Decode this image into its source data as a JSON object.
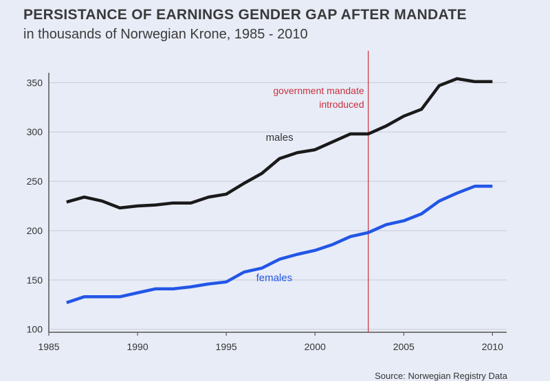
{
  "title": "PERSISTANCE OF EARNINGS GENDER GAP AFTER MANDATE",
  "subtitle": "in thousands of Norwegian Krone, 1985 - 2010",
  "source": "Source: Norwegian Registry Data",
  "colors": {
    "background": "#e8ecf7",
    "grid": "#c6cad3",
    "males": "#1a1a1a",
    "females": "#2256e6",
    "mandate": "#c8303c"
  },
  "chart_data": {
    "type": "line",
    "title": "PERSISTANCE OF EARNINGS GENDER GAP AFTER MANDATE",
    "subtitle": "in thousands of Norwegian Krone, 1985 - 2010",
    "xlim": [
      1985,
      2010.8
    ],
    "ylim": [
      97,
      360
    ],
    "xticks": [
      1985,
      1990,
      1995,
      2000,
      2005,
      2010
    ],
    "yticks": [
      100,
      150,
      200,
      250,
      300,
      350
    ],
    "grid": "horizontal",
    "x": [
      1986,
      1987,
      1988,
      1989,
      1990,
      1991,
      1992,
      1993,
      1994,
      1995,
      1996,
      1997,
      1998,
      1999,
      2000,
      2001,
      2002,
      2003,
      2004,
      2005,
      2006,
      2007,
      2008,
      2009,
      2010
    ],
    "series": [
      {
        "name": "males",
        "color": "#1a1a1a",
        "values": [
          229,
          234,
          230,
          223,
          225,
          226,
          228,
          228,
          234,
          237,
          248,
          258,
          273,
          279,
          282,
          290,
          298,
          298,
          306,
          316,
          323,
          347,
          354,
          351,
          351
        ]
      },
      {
        "name": "females",
        "color": "#2256e6",
        "values": [
          127,
          133,
          133,
          133,
          137,
          141,
          141,
          143,
          146,
          148,
          158,
          162,
          171,
          176,
          180,
          186,
          194,
          198,
          206,
          210,
          217,
          230,
          238,
          245,
          245
        ]
      }
    ],
    "annotations": [
      {
        "type": "vline",
        "x": 2003,
        "color": "#c8303c",
        "text": [
          "government mandate",
          "introduced"
        ]
      }
    ]
  }
}
